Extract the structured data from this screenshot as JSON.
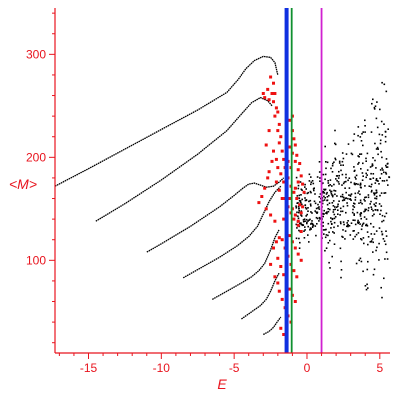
{
  "chart_data": {
    "type": "scatter",
    "title": "",
    "xlabel": "E",
    "ylabel": "<M>",
    "xlim": [
      -17.3,
      5.7
    ],
    "ylim": [
      10,
      345
    ],
    "x_ticks": [
      -15,
      -10,
      -5,
      0,
      5
    ],
    "x_tick_labels": [
      "-15",
      "-10",
      "-5",
      "0",
      "5"
    ],
    "y_ticks": [
      100,
      200,
      300
    ],
    "y_tick_labels": [
      "100",
      "200",
      "300"
    ],
    "grid": false,
    "legend": "none",
    "colors": {
      "axis": "#e8141e",
      "black_points": "#000000",
      "red_points": "#ee1111",
      "blue_line": "#1030e0",
      "green_line": "#109030",
      "magenta_line": "#d020d0"
    },
    "vertical_lines": [
      {
        "x": -1.4,
        "color": "#1030e0",
        "style": "thick"
      },
      {
        "x": -1.05,
        "color": "#109030",
        "style": "thin"
      },
      {
        "x": 1.0,
        "color": "#d020d0",
        "style": "thin"
      }
    ],
    "series": [
      {
        "kind": "black-curve",
        "points": [
          [
            -17.3,
            172
          ],
          [
            -15,
            189
          ],
          [
            -12.5,
            208
          ],
          [
            -10,
            227
          ],
          [
            -7.5,
            246
          ],
          [
            -5.5,
            263
          ],
          [
            -4.7,
            276
          ],
          [
            -4.2,
            286
          ],
          [
            -3.6,
            294
          ],
          [
            -3.0,
            298
          ],
          [
            -2.5,
            297
          ],
          [
            -2.2,
            292
          ],
          [
            -2.0,
            280
          ]
        ]
      },
      {
        "kind": "black-curve",
        "points": [
          [
            -14.5,
            138
          ],
          [
            -12.5,
            155
          ],
          [
            -10,
            178
          ],
          [
            -7.5,
            203
          ],
          [
            -5.5,
            226
          ],
          [
            -4.5,
            242
          ],
          [
            -3.8,
            253
          ],
          [
            -3.2,
            258
          ],
          [
            -2.7,
            255
          ],
          [
            -2.4,
            250
          ]
        ]
      },
      {
        "kind": "black-curve",
        "points": [
          [
            -11.0,
            108
          ],
          [
            -10,
            116
          ],
          [
            -8,
            133
          ],
          [
            -6,
            152
          ],
          [
            -5,
            163
          ],
          [
            -4.4,
            170
          ],
          [
            -4.0,
            174
          ],
          [
            -3.6,
            175
          ],
          [
            -3.2,
            173
          ],
          [
            -2.8,
            171
          ],
          [
            -2.3,
            172
          ],
          [
            -1.9,
            176
          ],
          [
            -1.6,
            180
          ]
        ]
      },
      {
        "kind": "black-curve",
        "points": [
          [
            -8.5,
            83
          ],
          [
            -7.5,
            91
          ],
          [
            -6,
            103
          ],
          [
            -4.8,
            114
          ],
          [
            -4.0,
            123
          ],
          [
            -3.4,
            133
          ],
          [
            -3.0,
            145
          ],
          [
            -2.6,
            157
          ],
          [
            -2.2,
            166
          ],
          [
            -1.8,
            172
          ]
        ]
      },
      {
        "kind": "black-curve",
        "points": [
          [
            -6.5,
            62
          ],
          [
            -5.5,
            70
          ],
          [
            -4.5,
            78
          ],
          [
            -3.8,
            84
          ],
          [
            -3.3,
            90
          ],
          [
            -2.9,
            97
          ],
          [
            -2.5,
            110
          ],
          [
            -2.2,
            122
          ],
          [
            -1.9,
            130
          ]
        ]
      },
      {
        "kind": "black-curve",
        "points": [
          [
            -4.5,
            43
          ],
          [
            -3.8,
            50
          ],
          [
            -3.2,
            56
          ],
          [
            -2.8,
            62
          ],
          [
            -2.5,
            70
          ],
          [
            -2.2,
            80
          ],
          [
            -1.9,
            88
          ]
        ]
      },
      {
        "kind": "black-curve",
        "points": [
          [
            -3.0,
            28
          ],
          [
            -2.6,
            31
          ],
          [
            -2.3,
            35
          ],
          [
            -2.0,
            41
          ],
          [
            -1.8,
            45
          ]
        ]
      },
      {
        "kind": "red-points",
        "points": [
          [
            -2.5,
            278
          ],
          [
            -2.3,
            272
          ],
          [
            -2.2,
            262
          ],
          [
            -2.9,
            258
          ],
          [
            -2.6,
            256
          ],
          [
            -2.3,
            254
          ],
          [
            -2.1,
            248
          ],
          [
            -2.0,
            244
          ],
          [
            -1.9,
            232
          ],
          [
            -1.8,
            220
          ],
          [
            -1.7,
            206
          ],
          [
            -1.6,
            198
          ],
          [
            -1.5,
            190
          ],
          [
            -1.4,
            186
          ],
          [
            -2.2,
            240
          ],
          [
            -2.0,
            226
          ],
          [
            -1.9,
            214
          ],
          [
            -1.2,
            210
          ],
          [
            -1.0,
            204
          ],
          [
            -0.8,
            196
          ],
          [
            -0.6,
            188
          ],
          [
            -1.3,
            180
          ],
          [
            -1.1,
            172
          ],
          [
            -0.9,
            166
          ],
          [
            -0.7,
            160
          ],
          [
            -0.5,
            154
          ],
          [
            -1.5,
            160
          ],
          [
            -1.3,
            152
          ],
          [
            -1.1,
            146
          ],
          [
            -0.9,
            140
          ],
          [
            -0.6,
            134
          ],
          [
            -0.4,
            128
          ],
          [
            -2.1,
            176
          ],
          [
            -1.9,
            168
          ],
          [
            -1.7,
            160
          ],
          [
            -2.4,
            196
          ],
          [
            -2.6,
            186
          ],
          [
            -1.6,
            140
          ],
          [
            -1.4,
            132
          ],
          [
            -1.2,
            124
          ],
          [
            -1.0,
            118
          ],
          [
            -0.8,
            112
          ],
          [
            -0.6,
            106
          ],
          [
            -0.4,
            100
          ],
          [
            -1.7,
            120
          ],
          [
            -1.5,
            112
          ],
          [
            -1.3,
            104
          ],
          [
            -1.1,
            96
          ],
          [
            -0.9,
            90
          ],
          [
            -0.7,
            84
          ],
          [
            -2.0,
            102
          ],
          [
            -1.8,
            94
          ],
          [
            -1.6,
            86
          ],
          [
            -1.4,
            78
          ],
          [
            -1.2,
            72
          ],
          [
            -1.0,
            66
          ],
          [
            -0.8,
            60
          ],
          [
            -1.9,
            70
          ],
          [
            -1.7,
            62
          ],
          [
            -1.5,
            54
          ],
          [
            -1.3,
            46
          ],
          [
            -1.1,
            40
          ],
          [
            -1.8,
            34
          ],
          [
            -1.6,
            28
          ],
          [
            -1.4,
            24
          ],
          [
            -2.7,
            180
          ],
          [
            -2.9,
            170
          ],
          [
            -3.1,
            162
          ],
          [
            -3.3,
            156
          ],
          [
            -2.8,
            150
          ],
          [
            -2.5,
            144
          ],
          [
            -2.2,
            138
          ],
          [
            -1.0,
            226
          ],
          [
            -0.9,
            218
          ],
          [
            -0.8,
            212
          ],
          [
            -0.7,
            202
          ],
          [
            -0.5,
            194
          ],
          [
            -0.4,
            182
          ],
          [
            -0.3,
            174
          ],
          [
            -0.2,
            166
          ],
          [
            -1.2,
            236
          ],
          [
            -1.0,
            240
          ],
          [
            -2.4,
            262
          ],
          [
            -2.7,
            266
          ],
          [
            -3.0,
            262
          ],
          [
            -2.0,
            190
          ],
          [
            -1.8,
            184
          ],
          [
            -1.6,
            176
          ],
          [
            -1.4,
            168
          ],
          [
            -1.2,
            160
          ],
          [
            -1.0,
            150
          ],
          [
            -0.8,
            144
          ],
          [
            -0.6,
            138
          ],
          [
            -0.4,
            146
          ],
          [
            -0.3,
            152
          ],
          [
            -2.3,
            112
          ],
          [
            -2.1,
            118
          ],
          [
            -1.9,
            122
          ],
          [
            -2.5,
            96
          ],
          [
            -2.2,
            84
          ],
          [
            -2.0,
            78
          ],
          [
            -0.8,
            170
          ],
          [
            -0.6,
            176
          ],
          [
            -1.1,
            190
          ],
          [
            -1.3,
            196
          ],
          [
            -2.6,
            226
          ],
          [
            -2.8,
            212
          ],
          [
            -2.3,
            206
          ],
          [
            -2.1,
            198
          ]
        ]
      }
    ]
  }
}
